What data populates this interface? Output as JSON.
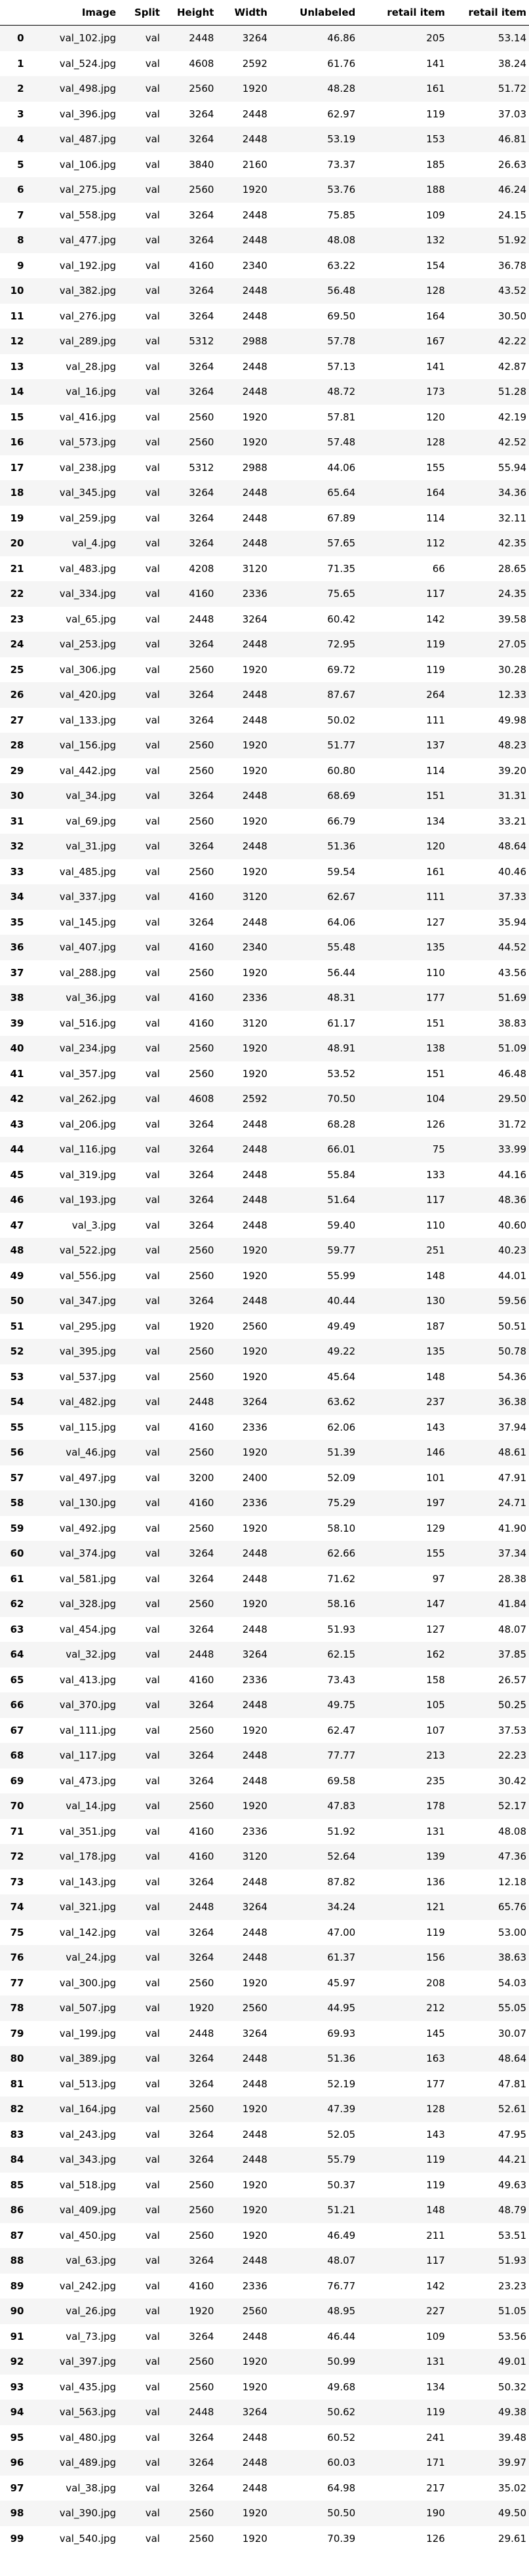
{
  "table": {
    "columns": [
      "",
      "Image",
      "Split",
      "Height",
      "Width",
      "Unlabeled",
      "retail item",
      "retail item"
    ],
    "rows": [
      [
        "0",
        "val_102.jpg",
        "val",
        "2448",
        "3264",
        "46.86",
        "205",
        "53.14"
      ],
      [
        "1",
        "val_524.jpg",
        "val",
        "4608",
        "2592",
        "61.76",
        "141",
        "38.24"
      ],
      [
        "2",
        "val_498.jpg",
        "val",
        "2560",
        "1920",
        "48.28",
        "161",
        "51.72"
      ],
      [
        "3",
        "val_396.jpg",
        "val",
        "3264",
        "2448",
        "62.97",
        "119",
        "37.03"
      ],
      [
        "4",
        "val_487.jpg",
        "val",
        "3264",
        "2448",
        "53.19",
        "153",
        "46.81"
      ],
      [
        "5",
        "val_106.jpg",
        "val",
        "3840",
        "2160",
        "73.37",
        "185",
        "26.63"
      ],
      [
        "6",
        "val_275.jpg",
        "val",
        "2560",
        "1920",
        "53.76",
        "188",
        "46.24"
      ],
      [
        "7",
        "val_558.jpg",
        "val",
        "3264",
        "2448",
        "75.85",
        "109",
        "24.15"
      ],
      [
        "8",
        "val_477.jpg",
        "val",
        "3264",
        "2448",
        "48.08",
        "132",
        "51.92"
      ],
      [
        "9",
        "val_192.jpg",
        "val",
        "4160",
        "2340",
        "63.22",
        "154",
        "36.78"
      ],
      [
        "10",
        "val_382.jpg",
        "val",
        "3264",
        "2448",
        "56.48",
        "128",
        "43.52"
      ],
      [
        "11",
        "val_276.jpg",
        "val",
        "3264",
        "2448",
        "69.50",
        "164",
        "30.50"
      ],
      [
        "12",
        "val_289.jpg",
        "val",
        "5312",
        "2988",
        "57.78",
        "167",
        "42.22"
      ],
      [
        "13",
        "val_28.jpg",
        "val",
        "3264",
        "2448",
        "57.13",
        "141",
        "42.87"
      ],
      [
        "14",
        "val_16.jpg",
        "val",
        "3264",
        "2448",
        "48.72",
        "173",
        "51.28"
      ],
      [
        "15",
        "val_416.jpg",
        "val",
        "2560",
        "1920",
        "57.81",
        "120",
        "42.19"
      ],
      [
        "16",
        "val_573.jpg",
        "val",
        "2560",
        "1920",
        "57.48",
        "128",
        "42.52"
      ],
      [
        "17",
        "val_238.jpg",
        "val",
        "5312",
        "2988",
        "44.06",
        "155",
        "55.94"
      ],
      [
        "18",
        "val_345.jpg",
        "val",
        "3264",
        "2448",
        "65.64",
        "164",
        "34.36"
      ],
      [
        "19",
        "val_259.jpg",
        "val",
        "3264",
        "2448",
        "67.89",
        "114",
        "32.11"
      ],
      [
        "20",
        "val_4.jpg",
        "val",
        "3264",
        "2448",
        "57.65",
        "112",
        "42.35"
      ],
      [
        "21",
        "val_483.jpg",
        "val",
        "4208",
        "3120",
        "71.35",
        "66",
        "28.65"
      ],
      [
        "22",
        "val_334.jpg",
        "val",
        "4160",
        "2336",
        "75.65",
        "117",
        "24.35"
      ],
      [
        "23",
        "val_65.jpg",
        "val",
        "2448",
        "3264",
        "60.42",
        "142",
        "39.58"
      ],
      [
        "24",
        "val_253.jpg",
        "val",
        "3264",
        "2448",
        "72.95",
        "119",
        "27.05"
      ],
      [
        "25",
        "val_306.jpg",
        "val",
        "2560",
        "1920",
        "69.72",
        "119",
        "30.28"
      ],
      [
        "26",
        "val_420.jpg",
        "val",
        "3264",
        "2448",
        "87.67",
        "264",
        "12.33"
      ],
      [
        "27",
        "val_133.jpg",
        "val",
        "3264",
        "2448",
        "50.02",
        "111",
        "49.98"
      ],
      [
        "28",
        "val_156.jpg",
        "val",
        "2560",
        "1920",
        "51.77",
        "137",
        "48.23"
      ],
      [
        "29",
        "val_442.jpg",
        "val",
        "2560",
        "1920",
        "60.80",
        "114",
        "39.20"
      ],
      [
        "30",
        "val_34.jpg",
        "val",
        "3264",
        "2448",
        "68.69",
        "151",
        "31.31"
      ],
      [
        "31",
        "val_69.jpg",
        "val",
        "2560",
        "1920",
        "66.79",
        "134",
        "33.21"
      ],
      [
        "32",
        "val_31.jpg",
        "val",
        "3264",
        "2448",
        "51.36",
        "120",
        "48.64"
      ],
      [
        "33",
        "val_485.jpg",
        "val",
        "2560",
        "1920",
        "59.54",
        "161",
        "40.46"
      ],
      [
        "34",
        "val_337.jpg",
        "val",
        "4160",
        "3120",
        "62.67",
        "111",
        "37.33"
      ],
      [
        "35",
        "val_145.jpg",
        "val",
        "3264",
        "2448",
        "64.06",
        "127",
        "35.94"
      ],
      [
        "36",
        "val_407.jpg",
        "val",
        "4160",
        "2340",
        "55.48",
        "135",
        "44.52"
      ],
      [
        "37",
        "val_288.jpg",
        "val",
        "2560",
        "1920",
        "56.44",
        "110",
        "43.56"
      ],
      [
        "38",
        "val_36.jpg",
        "val",
        "4160",
        "2336",
        "48.31",
        "177",
        "51.69"
      ],
      [
        "39",
        "val_516.jpg",
        "val",
        "4160",
        "3120",
        "61.17",
        "151",
        "38.83"
      ],
      [
        "40",
        "val_234.jpg",
        "val",
        "2560",
        "1920",
        "48.91",
        "138",
        "51.09"
      ],
      [
        "41",
        "val_357.jpg",
        "val",
        "2560",
        "1920",
        "53.52",
        "151",
        "46.48"
      ],
      [
        "42",
        "val_262.jpg",
        "val",
        "4608",
        "2592",
        "70.50",
        "104",
        "29.50"
      ],
      [
        "43",
        "val_206.jpg",
        "val",
        "3264",
        "2448",
        "68.28",
        "126",
        "31.72"
      ],
      [
        "44",
        "val_116.jpg",
        "val",
        "3264",
        "2448",
        "66.01",
        "75",
        "33.99"
      ],
      [
        "45",
        "val_319.jpg",
        "val",
        "3264",
        "2448",
        "55.84",
        "133",
        "44.16"
      ],
      [
        "46",
        "val_193.jpg",
        "val",
        "3264",
        "2448",
        "51.64",
        "117",
        "48.36"
      ],
      [
        "47",
        "val_3.jpg",
        "val",
        "3264",
        "2448",
        "59.40",
        "110",
        "40.60"
      ],
      [
        "48",
        "val_522.jpg",
        "val",
        "2560",
        "1920",
        "59.77",
        "251",
        "40.23"
      ],
      [
        "49",
        "val_556.jpg",
        "val",
        "2560",
        "1920",
        "55.99",
        "148",
        "44.01"
      ],
      [
        "50",
        "val_347.jpg",
        "val",
        "3264",
        "2448",
        "40.44",
        "130",
        "59.56"
      ],
      [
        "51",
        "val_295.jpg",
        "val",
        "1920",
        "2560",
        "49.49",
        "187",
        "50.51"
      ],
      [
        "52",
        "val_395.jpg",
        "val",
        "2560",
        "1920",
        "49.22",
        "135",
        "50.78"
      ],
      [
        "53",
        "val_537.jpg",
        "val",
        "2560",
        "1920",
        "45.64",
        "148",
        "54.36"
      ],
      [
        "54",
        "val_482.jpg",
        "val",
        "2448",
        "3264",
        "63.62",
        "237",
        "36.38"
      ],
      [
        "55",
        "val_115.jpg",
        "val",
        "4160",
        "2336",
        "62.06",
        "143",
        "37.94"
      ],
      [
        "56",
        "val_46.jpg",
        "val",
        "2560",
        "1920",
        "51.39",
        "146",
        "48.61"
      ],
      [
        "57",
        "val_497.jpg",
        "val",
        "3200",
        "2400",
        "52.09",
        "101",
        "47.91"
      ],
      [
        "58",
        "val_130.jpg",
        "val",
        "4160",
        "2336",
        "75.29",
        "197",
        "24.71"
      ],
      [
        "59",
        "val_492.jpg",
        "val",
        "2560",
        "1920",
        "58.10",
        "129",
        "41.90"
      ],
      [
        "60",
        "val_374.jpg",
        "val",
        "3264",
        "2448",
        "62.66",
        "155",
        "37.34"
      ],
      [
        "61",
        "val_581.jpg",
        "val",
        "3264",
        "2448",
        "71.62",
        "97",
        "28.38"
      ],
      [
        "62",
        "val_328.jpg",
        "val",
        "2560",
        "1920",
        "58.16",
        "147",
        "41.84"
      ],
      [
        "63",
        "val_454.jpg",
        "val",
        "3264",
        "2448",
        "51.93",
        "127",
        "48.07"
      ],
      [
        "64",
        "val_32.jpg",
        "val",
        "2448",
        "3264",
        "62.15",
        "162",
        "37.85"
      ],
      [
        "65",
        "val_413.jpg",
        "val",
        "4160",
        "2336",
        "73.43",
        "158",
        "26.57"
      ],
      [
        "66",
        "val_370.jpg",
        "val",
        "3264",
        "2448",
        "49.75",
        "105",
        "50.25"
      ],
      [
        "67",
        "val_111.jpg",
        "val",
        "2560",
        "1920",
        "62.47",
        "107",
        "37.53"
      ],
      [
        "68",
        "val_117.jpg",
        "val",
        "3264",
        "2448",
        "77.77",
        "213",
        "22.23"
      ],
      [
        "69",
        "val_473.jpg",
        "val",
        "3264",
        "2448",
        "69.58",
        "235",
        "30.42"
      ],
      [
        "70",
        "val_14.jpg",
        "val",
        "2560",
        "1920",
        "47.83",
        "178",
        "52.17"
      ],
      [
        "71",
        "val_351.jpg",
        "val",
        "4160",
        "2336",
        "51.92",
        "131",
        "48.08"
      ],
      [
        "72",
        "val_178.jpg",
        "val",
        "4160",
        "3120",
        "52.64",
        "139",
        "47.36"
      ],
      [
        "73",
        "val_143.jpg",
        "val",
        "3264",
        "2448",
        "87.82",
        "136",
        "12.18"
      ],
      [
        "74",
        "val_321.jpg",
        "val",
        "2448",
        "3264",
        "34.24",
        "121",
        "65.76"
      ],
      [
        "75",
        "val_142.jpg",
        "val",
        "3264",
        "2448",
        "47.00",
        "119",
        "53.00"
      ],
      [
        "76",
        "val_24.jpg",
        "val",
        "3264",
        "2448",
        "61.37",
        "156",
        "38.63"
      ],
      [
        "77",
        "val_300.jpg",
        "val",
        "2560",
        "1920",
        "45.97",
        "208",
        "54.03"
      ],
      [
        "78",
        "val_507.jpg",
        "val",
        "1920",
        "2560",
        "44.95",
        "212",
        "55.05"
      ],
      [
        "79",
        "val_199.jpg",
        "val",
        "2448",
        "3264",
        "69.93",
        "145",
        "30.07"
      ],
      [
        "80",
        "val_389.jpg",
        "val",
        "3264",
        "2448",
        "51.36",
        "163",
        "48.64"
      ],
      [
        "81",
        "val_513.jpg",
        "val",
        "3264",
        "2448",
        "52.19",
        "177",
        "47.81"
      ],
      [
        "82",
        "val_164.jpg",
        "val",
        "2560",
        "1920",
        "47.39",
        "128",
        "52.61"
      ],
      [
        "83",
        "val_243.jpg",
        "val",
        "3264",
        "2448",
        "52.05",
        "143",
        "47.95"
      ],
      [
        "84",
        "val_343.jpg",
        "val",
        "3264",
        "2448",
        "55.79",
        "119",
        "44.21"
      ],
      [
        "85",
        "val_518.jpg",
        "val",
        "2560",
        "1920",
        "50.37",
        "119",
        "49.63"
      ],
      [
        "86",
        "val_409.jpg",
        "val",
        "2560",
        "1920",
        "51.21",
        "148",
        "48.79"
      ],
      [
        "87",
        "val_450.jpg",
        "val",
        "2560",
        "1920",
        "46.49",
        "211",
        "53.51"
      ],
      [
        "88",
        "val_63.jpg",
        "val",
        "3264",
        "2448",
        "48.07",
        "117",
        "51.93"
      ],
      [
        "89",
        "val_242.jpg",
        "val",
        "4160",
        "2336",
        "76.77",
        "142",
        "23.23"
      ],
      [
        "90",
        "val_26.jpg",
        "val",
        "1920",
        "2560",
        "48.95",
        "227",
        "51.05"
      ],
      [
        "91",
        "val_73.jpg",
        "val",
        "3264",
        "2448",
        "46.44",
        "109",
        "53.56"
      ],
      [
        "92",
        "val_397.jpg",
        "val",
        "2560",
        "1920",
        "50.99",
        "131",
        "49.01"
      ],
      [
        "93",
        "val_435.jpg",
        "val",
        "2560",
        "1920",
        "49.68",
        "134",
        "50.32"
      ],
      [
        "94",
        "val_563.jpg",
        "val",
        "2448",
        "3264",
        "50.62",
        "119",
        "49.38"
      ],
      [
        "95",
        "val_480.jpg",
        "val",
        "3264",
        "2448",
        "60.52",
        "241",
        "39.48"
      ],
      [
        "96",
        "val_489.jpg",
        "val",
        "3264",
        "2448",
        "60.03",
        "171",
        "39.97"
      ],
      [
        "97",
        "val_38.jpg",
        "val",
        "3264",
        "2448",
        "64.98",
        "217",
        "35.02"
      ],
      [
        "98",
        "val_390.jpg",
        "val",
        "2560",
        "1920",
        "50.50",
        "190",
        "49.50"
      ],
      [
        "99",
        "val_540.jpg",
        "val",
        "2560",
        "1920",
        "70.39",
        "126",
        "29.61"
      ]
    ]
  }
}
